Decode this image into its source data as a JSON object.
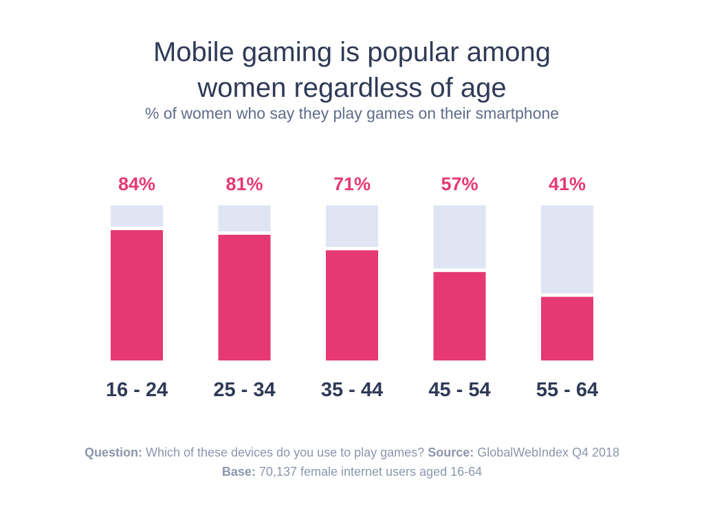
{
  "title_line1": "Mobile gaming is popular among",
  "title_line2": "women regardless of age",
  "subtitle": "% of women who say they play games on their smartphone",
  "footer": {
    "question_label": "Question:",
    "question_text": "Which of these devices do you use to play games?",
    "source_label": "Source:",
    "source_text": "GlobalWebIndex Q4 2018",
    "base_label": "Base:",
    "base_text": "70,137 female internet users aged 16-64"
  },
  "colors": {
    "bar": "#e63973",
    "track": "#dfe5f2",
    "value_label": "#e63973",
    "category_label": "#2f3a57"
  },
  "chart_data": {
    "type": "bar",
    "categories": [
      "16 - 24",
      "25 - 34",
      "35 - 44",
      "45 - 54",
      "55 - 64"
    ],
    "values": [
      84,
      81,
      71,
      57,
      41
    ],
    "value_labels": [
      "84%",
      "81%",
      "71%",
      "57%",
      "41%"
    ],
    "ylim": [
      0,
      100
    ],
    "xlabel": "",
    "ylabel": "",
    "grid": false,
    "legend": false
  }
}
